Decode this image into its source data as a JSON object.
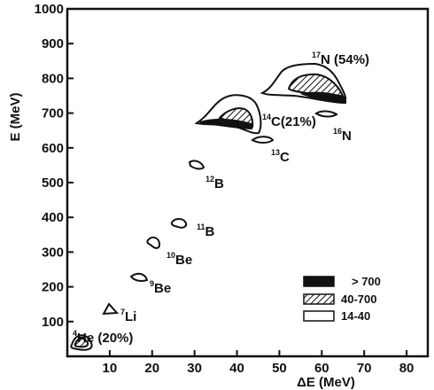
{
  "chart_data": {
    "type": "scatter",
    "xlabel": "ΔE (MeV)",
    "ylabel": "E (MeV)",
    "xlim": [
      0,
      85
    ],
    "ylim": [
      0,
      1000
    ],
    "x_ticks": [
      10,
      20,
      30,
      40,
      50,
      60,
      70,
      80
    ],
    "y_ticks": [
      100,
      200,
      300,
      400,
      500,
      600,
      700,
      800,
      900,
      1000
    ],
    "x_tick_labels": [
      "10",
      "20",
      "30",
      "40",
      "50",
      "60",
      "70",
      "80"
    ],
    "y_tick_labels": [
      "100",
      "200",
      "300",
      "400",
      "500",
      "600",
      "700",
      "800",
      "900",
      "1000"
    ],
    "grid": false,
    "legend": {
      "placement": "bottom-right",
      "entries": [
        {
          "label": "> 700",
          "fill": "solid"
        },
        {
          "label": "40-700",
          "fill": "hatched"
        },
        {
          "label": "14-40",
          "fill": "open"
        }
      ]
    },
    "isotopes": [
      {
        "mass": "4",
        "symbol": "He",
        "suffix": " (20%)",
        "x": 2.5,
        "y": 45,
        "levels": [
          "14-40",
          "40-700"
        ]
      },
      {
        "mass": "7",
        "symbol": "Li",
        "suffix": "",
        "x": 10,
        "y": 125,
        "levels": [
          "14-40"
        ]
      },
      {
        "mass": "9",
        "symbol": "Be",
        "suffix": "",
        "x": 16.5,
        "y": 228,
        "levels": [
          "14-40"
        ]
      },
      {
        "mass": "10",
        "symbol": "Be",
        "suffix": "",
        "x": 20.5,
        "y": 325,
        "levels": [
          "14-40"
        ]
      },
      {
        "mass": "11",
        "symbol": "B",
        "suffix": "",
        "x": 26.5,
        "y": 385,
        "levels": [
          "14-40"
        ]
      },
      {
        "mass": "12",
        "symbol": "B",
        "suffix": "",
        "x": 30.5,
        "y": 560,
        "levels": [
          "14-40"
        ]
      },
      {
        "mass": "13",
        "symbol": "C",
        "suffix": "",
        "x": 45,
        "y": 632,
        "levels": [
          "14-40"
        ]
      },
      {
        "mass": "14",
        "symbol": "C",
        "suffix": "(21%)",
        "x": 38,
        "y": 705,
        "levels": [
          "14-40",
          "40-700",
          "> 700"
        ]
      },
      {
        "mass": "17",
        "symbol": "N",
        "suffix": " (54%)",
        "x": 55,
        "y": 790,
        "levels": [
          "14-40",
          "40-700",
          "> 700"
        ]
      },
      {
        "mass": "16",
        "symbol": "N",
        "suffix": "",
        "x": 66,
        "y": 703,
        "levels": [
          "14-40"
        ]
      }
    ]
  }
}
